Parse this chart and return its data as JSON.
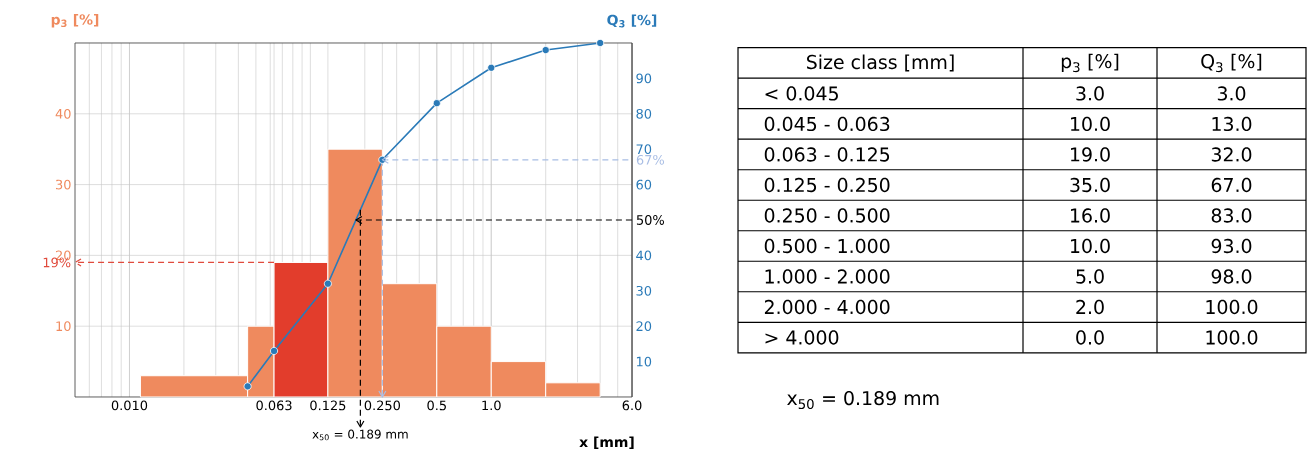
{
  "chart_data": [
    {
      "type": "histogram",
      "xlabel": "x [mm]",
      "ylabel": "p$_{3}$ [%]",
      "y2label": "Q$_{3}$ [%]",
      "bins": [
        0.0115,
        0.045,
        0.063,
        0.125,
        0.25,
        0.5,
        1.0,
        2.0,
        4.0
      ],
      "values": [
        3,
        10,
        19,
        35,
        16,
        10,
        5,
        2
      ],
      "colors": [
        "#ef8a5e",
        "#ef8a5e",
        "#e23d2c",
        "#ef8a5e",
        "#ef8a5e",
        "#ef8a5e",
        "#ef8a5e",
        "#ef8a5e"
      ],
      "series": [
        {
          "type": "line",
          "axis": "y2",
          "x": [
            0.045,
            0.063,
            0.125,
            0.25,
            0.5,
            1.0,
            2.0,
            4.0
          ],
          "values": [
            3,
            13,
            32,
            67,
            83,
            93,
            98,
            100
          ],
          "color": "#2a7ab8",
          "marker": "circle"
        }
      ],
      "log": "x",
      "xlim": [
        0.005,
        6
      ],
      "xticks": [
        {
          "value": 0.01,
          "label": "0.010"
        },
        {
          "value": 0.063,
          "label": "0.063"
        },
        {
          "value": 0.125,
          "label": "0.125"
        },
        {
          "value": 0.25,
          "label": "0.250"
        },
        0.5,
        {
          "value": 1,
          "label": "1.0"
        },
        {
          "value": 6,
          "label": "6.0"
        }
      ],
      "ylim": [
        0,
        50
      ],
      "yticks": [
        10,
        20,
        30,
        40
      ],
      "y2lim": [
        0,
        100
      ],
      "y2ticks": [
        10,
        20,
        30,
        40,
        60,
        70,
        80,
        90
      ],
      "grid": true,
      "ref_lines": [
        {
          "axis": "y",
          "value": 19,
          "label": "19%",
          "color": "#e04a3c",
          "line_style": "dashed"
        },
        {
          "axis": "y2",
          "value": 67,
          "label": "67%",
          "color": "#a8bde4",
          "line_style": "dashed"
        },
        {
          "axis": "y2",
          "value": 50,
          "label": "50%",
          "color": "#000000",
          "line_style": "dashed"
        },
        {
          "axis": "x",
          "value": 0.25,
          "color": "#a8bde4",
          "line_style": "dashed"
        },
        {
          "axis": "x",
          "value": 0.189,
          "label": "x$_{50}$ = 0.189 mm",
          "color": "#000000",
          "line_style": "dashed"
        }
      ]
    },
    {
      "type": "other",
      "xlabel": "Size class [mm]",
      "categories": [
        "< 0.045",
        "0.045 - 0.063",
        "0.063 - 0.125",
        "0.125 - 0.250",
        "0.250 - 0.500",
        "0.500 - 1.000",
        "1.000 - 2.000",
        "2.000 - 4.000",
        "> 4.000"
      ],
      "series": [
        {
          "name": "p$_{3}$ [%]",
          "values": [
            3,
            10,
            19,
            35,
            16,
            10,
            5,
            2,
            0
          ],
          "value_labels": [
            "3.0",
            "10.0",
            "19.0",
            "35.0",
            "16.0",
            "10.0",
            "5.0",
            "2.0",
            "0.0"
          ]
        },
        {
          "name": "Q$_{3}$ [%]",
          "values": [
            3,
            13,
            32,
            67,
            83,
            93,
            98,
            100,
            100
          ],
          "value_labels": [
            "3.0",
            "13.0",
            "32.0",
            "67.0",
            "83.0",
            "93.0",
            "98.0",
            "100.0",
            "100.0"
          ]
        }
      ],
      "annotations": [
        "x$_{50}$ = 0.189 mm"
      ]
    }
  ]
}
